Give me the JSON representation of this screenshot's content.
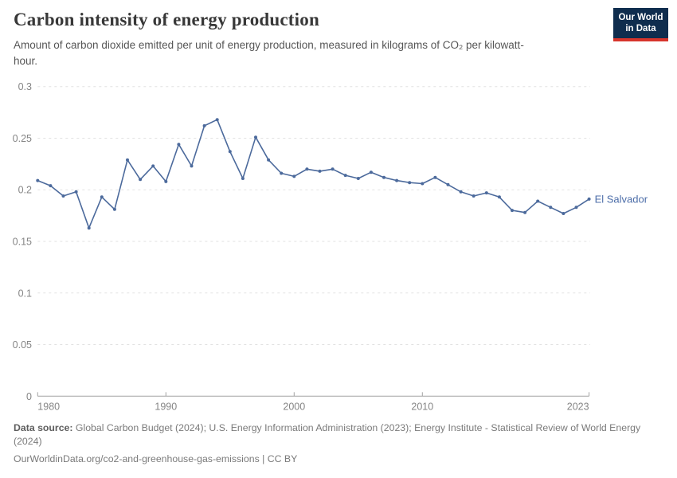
{
  "header": {
    "logo": {
      "line1": "Our World",
      "line2": "in Data",
      "bg_color": "#0f2d4e",
      "stripe_color": "#d7352c"
    }
  },
  "chart_data": {
    "type": "line",
    "title": "Carbon intensity of energy production",
    "subtitle": "Amount of carbon dioxide emitted per unit of energy production, measured in kilograms of CO₂ per kilowatt-hour.",
    "xlabel": "",
    "ylabel": "",
    "xlim": [
      1980,
      2023
    ],
    "ylim": [
      0,
      0.3
    ],
    "grid": "horizontal-dashed",
    "legend": "end-of-line-label",
    "xticks": [
      1980,
      1990,
      2000,
      2010,
      2023
    ],
    "yticks": [
      0,
      0.05,
      0.1,
      0.15,
      0.2,
      0.25,
      0.3
    ],
    "ytick_labels": [
      "0",
      "0.05",
      "0.1",
      "0.15",
      "0.2",
      "0.25",
      "0.3"
    ],
    "x": [
      1980,
      1981,
      1982,
      1983,
      1984,
      1985,
      1986,
      1987,
      1988,
      1989,
      1990,
      1991,
      1992,
      1993,
      1994,
      1995,
      1996,
      1997,
      1998,
      1999,
      2000,
      2001,
      2002,
      2003,
      2004,
      2005,
      2006,
      2007,
      2008,
      2009,
      2010,
      2011,
      2012,
      2013,
      2014,
      2015,
      2016,
      2017,
      2018,
      2019,
      2020,
      2021,
      2022,
      2023
    ],
    "series": [
      {
        "name": "El Salvador",
        "color": "#4c6a9c",
        "label_color": "#4d6ea9",
        "values": [
          0.209,
          0.204,
          0.194,
          0.198,
          0.163,
          0.193,
          0.181,
          0.229,
          0.21,
          0.223,
          0.208,
          0.244,
          0.223,
          0.262,
          0.268,
          0.237,
          0.211,
          0.251,
          0.229,
          0.216,
          0.213,
          0.22,
          0.218,
          0.22,
          0.214,
          0.211,
          0.217,
          0.212,
          0.209,
          0.207,
          0.206,
          0.212,
          0.205,
          0.198,
          0.194,
          0.197,
          0.193,
          0.18,
          0.178,
          0.189,
          0.183,
          0.177,
          0.183,
          0.191
        ]
      }
    ],
    "axis_color": "#a3a3a3",
    "gridline_color": "#e2e2e2",
    "tick_label_color": "#858585"
  },
  "footer": {
    "source_label": "Data source:",
    "source_text": " Global Carbon Budget (2024); U.S. Energy Information Administration (2023); Energy Institute - Statistical Review of World Energy (2024)",
    "link_text": "OurWorldinData.org/co2-and-greenhouse-gas-emissions | CC BY"
  }
}
